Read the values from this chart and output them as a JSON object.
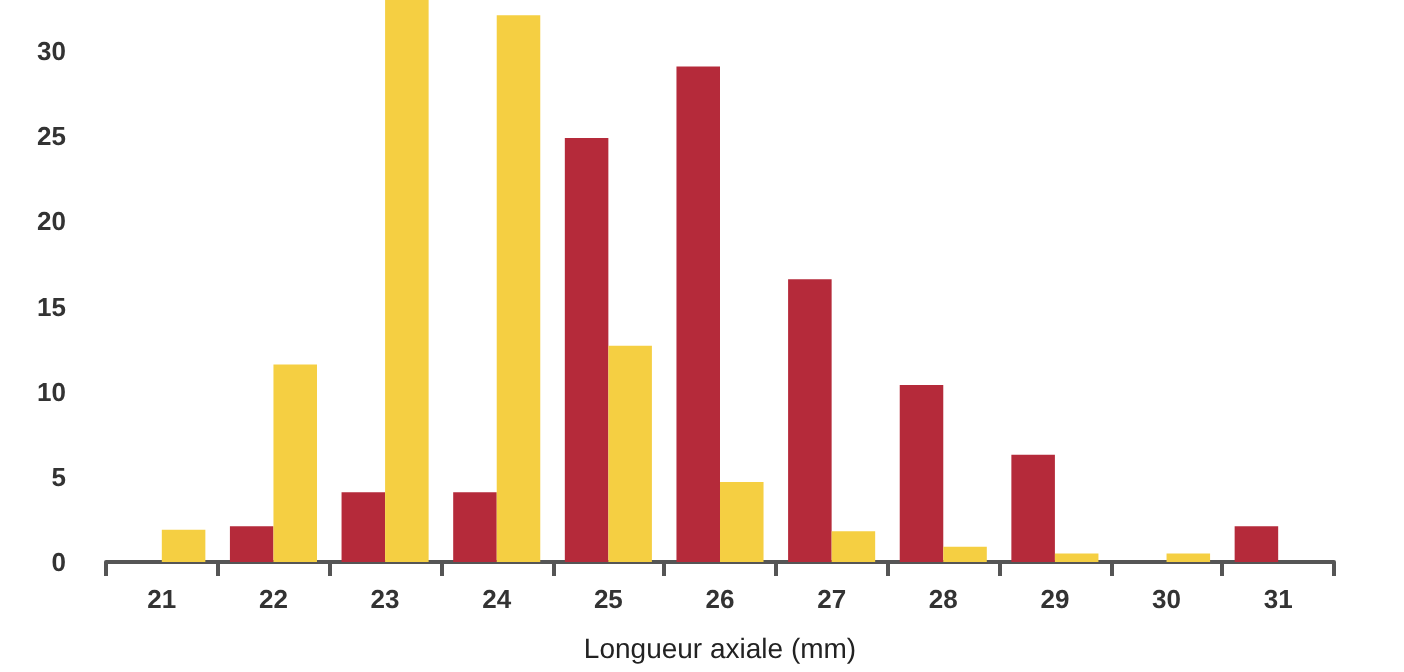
{
  "chart_data": {
    "type": "bar",
    "xlabel": "Longueur axiale (mm)",
    "categories": [
      "21",
      "22",
      "23",
      "24",
      "25",
      "26",
      "27",
      "28",
      "29",
      "30",
      "31"
    ],
    "series": [
      {
        "color": "#b52a3a",
        "values": [
          0,
          2.1,
          4.1,
          4.1,
          24.9,
          29.1,
          16.6,
          10.4,
          6.3,
          0,
          2.1
        ]
      },
      {
        "color": "#f5cf42",
        "values": [
          1.9,
          11.6,
          33,
          32.1,
          12.7,
          4.7,
          1.8,
          0.9,
          0.5,
          0.5,
          0
        ]
      }
    ],
    "ylim": [
      0,
      33
    ],
    "yticks": [
      0,
      5,
      10,
      15,
      20,
      25,
      30
    ],
    "grid": false
  }
}
